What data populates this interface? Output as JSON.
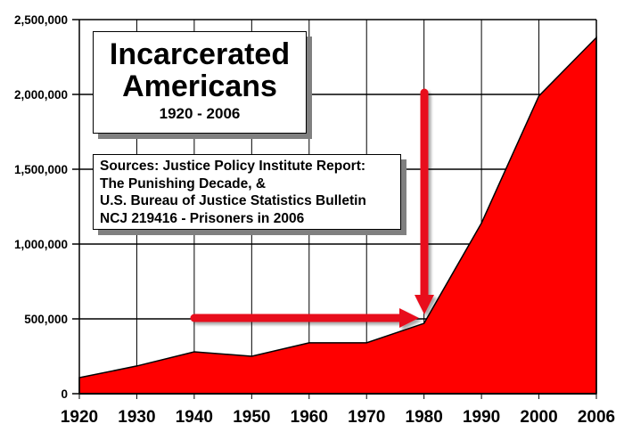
{
  "chart_data": {
    "type": "area",
    "title": "Incarcerated Americans",
    "subtitle": "1920 - 2006",
    "xlabel": "",
    "ylabel": "",
    "categories": [
      "1920",
      "1930",
      "1940",
      "1950",
      "1960",
      "1970",
      "1980",
      "1990",
      "2000",
      "2006"
    ],
    "series": [
      {
        "name": "Incarcerated Americans",
        "color": "#ff0000",
        "values": [
          107000,
          185000,
          280000,
          250000,
          340000,
          340000,
          470000,
          1140000,
          1990000,
          2380000
        ]
      }
    ],
    "ylim": [
      0,
      2500000
    ],
    "yticks": [
      0,
      500000,
      1000000,
      1500000,
      2000000,
      2500000
    ],
    "ytick_labels": [
      "0",
      "500,000",
      "1,000,000",
      "1,500,000",
      "2,000,000",
      "2,500,000"
    ],
    "grid": true,
    "legend": null,
    "annotations": [
      {
        "type": "textbox",
        "lines": [
          "Incarcerated",
          "Americans",
          "1920 - 2006"
        ]
      },
      {
        "type": "textbox",
        "lines": [
          "Sources: Justice Policy Institute Report:",
          "The Punishing Decade, &",
          "U.S. Bureau of Justice Statistics Bulletin",
          "NCJ 219416 - Prisoners in 2006"
        ]
      },
      {
        "type": "arrow",
        "direction": "right",
        "from": "1940 @ 500,000",
        "to": "1980 @ 500,000",
        "color": "#e8101e"
      },
      {
        "type": "arrow",
        "direction": "down",
        "from": "1980 @ 2,000,000",
        "to": "1980 @ 500,000",
        "color": "#e8101e"
      }
    ]
  },
  "title_box": {
    "line1": "Incarcerated",
    "line2": "Americans",
    "line3": "1920 - 2006"
  },
  "source_box": {
    "lines": [
      "Sources: Justice Policy Institute Report:",
      "The Punishing Decade, &",
      "U.S. Bureau of Justice Statistics Bulletin",
      "NCJ 219416 - Prisoners in 2006"
    ]
  },
  "colors": {
    "area_fill": "#ff0000",
    "arrow": "#e8101e",
    "grid": "#000000",
    "shadow": "#808080"
  }
}
